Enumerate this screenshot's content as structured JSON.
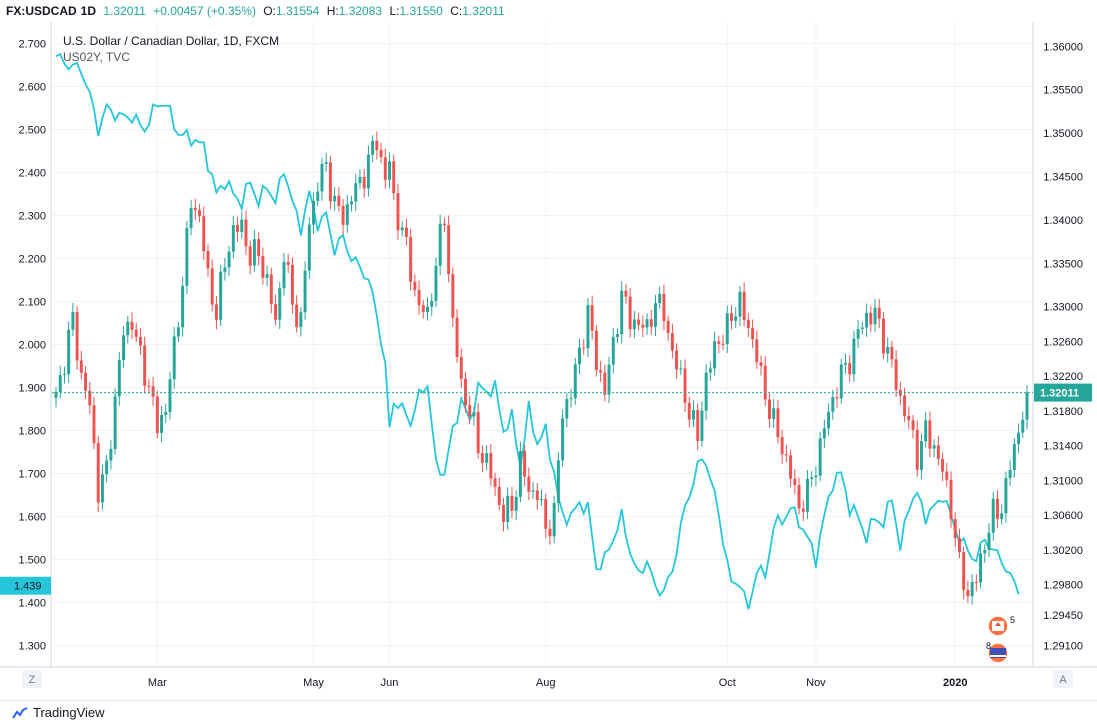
{
  "header": {
    "symbol": "FX:USDCAD",
    "interval": "1D",
    "last": "1.32011",
    "change": "+0.00457 (+0.35%)",
    "o_label": "O:",
    "o_val": "1.31554",
    "h_label": "H:",
    "h_val": "1.32083",
    "l_label": "L:",
    "l_val": "1.31550",
    "c_label": "C:",
    "c_val": "1.32011"
  },
  "legend": {
    "title": "U.S. Dollar / Canadian Dollar, 1D, FXCM",
    "overlay": "US02Y, TVC"
  },
  "colors": {
    "up": "#26a69a",
    "down": "#ef5350",
    "overlay": "#26c6da",
    "price_line": "#26a69a",
    "grid": "#f0f3fa"
  },
  "axis_buttons": {
    "left": "Z",
    "right": "A"
  },
  "branding": "TradingView",
  "badges": {
    "ca_count": "5",
    "us_count": "8"
  },
  "chart_data": {
    "type": "line",
    "title": "U.S. Dollar / Canadian Dollar, 1D, FXCM",
    "x_ticks": [
      "Mar",
      "May",
      "Jun",
      "Aug",
      "Oct",
      "Nov",
      "2020"
    ],
    "x_tick_bars": [
      24,
      61,
      79,
      116,
      159,
      180,
      213
    ],
    "n_bars": 230,
    "left_axis": {
      "range": [
        1.25,
        2.75
      ],
      "ticks": [
        "2.700",
        "2.600",
        "2.500",
        "2.400",
        "2.300",
        "2.200",
        "2.100",
        "2.000",
        "1.900",
        "1.800",
        "1.700",
        "1.600",
        "1.500",
        "1.400",
        "1.300"
      ],
      "current_label": "1.439",
      "current_value": 1.439
    },
    "right_axis": {
      "range": [
        1.2885,
        1.3628
      ],
      "ticks": [
        "1.36000",
        "1.35500",
        "1.35000",
        "1.34500",
        "1.34000",
        "1.33500",
        "1.33000",
        "1.32600",
        "1.32200",
        "1.31800",
        "1.31400",
        "1.31000",
        "1.30600",
        "1.30200",
        "1.29800",
        "1.29450",
        "1.29100"
      ],
      "current_label": "1.32011",
      "current_value": 1.32011
    },
    "series": [
      {
        "name": "US02Y, TVC",
        "kind": "line",
        "axis": "left",
        "anchors": [
          [
            0,
            2.67
          ],
          [
            3,
            2.65
          ],
          [
            6,
            2.64
          ],
          [
            8,
            2.58
          ],
          [
            10,
            2.5
          ],
          [
            12,
            2.55
          ],
          [
            15,
            2.53
          ],
          [
            18,
            2.53
          ],
          [
            21,
            2.5
          ],
          [
            24,
            2.56
          ],
          [
            26,
            2.56
          ],
          [
            29,
            2.49
          ],
          [
            32,
            2.48
          ],
          [
            35,
            2.46
          ],
          [
            38,
            2.35
          ],
          [
            40,
            2.38
          ],
          [
            42,
            2.35
          ],
          [
            44,
            2.33
          ],
          [
            46,
            2.38
          ],
          [
            48,
            2.33
          ],
          [
            50,
            2.37
          ],
          [
            52,
            2.33
          ],
          [
            54,
            2.41
          ],
          [
            56,
            2.33
          ],
          [
            58,
            2.27
          ],
          [
            60,
            2.35
          ],
          [
            62,
            2.28
          ],
          [
            64,
            2.3
          ],
          [
            66,
            2.22
          ],
          [
            68,
            2.25
          ],
          [
            70,
            2.2
          ],
          [
            72,
            2.18
          ],
          [
            74,
            2.15
          ],
          [
            76,
            2.07
          ],
          [
            78,
            1.95
          ],
          [
            79,
            1.8
          ],
          [
            80,
            1.87
          ],
          [
            82,
            1.85
          ],
          [
            84,
            1.82
          ],
          [
            86,
            1.88
          ],
          [
            88,
            1.91
          ],
          [
            90,
            1.72
          ],
          [
            92,
            1.7
          ],
          [
            94,
            1.8
          ],
          [
            96,
            1.87
          ],
          [
            98,
            1.82
          ],
          [
            100,
            1.9
          ],
          [
            102,
            1.89
          ],
          [
            104,
            1.9
          ],
          [
            106,
            1.8
          ],
          [
            108,
            1.83
          ],
          [
            110,
            1.72
          ],
          [
            112,
            1.85
          ],
          [
            114,
            1.77
          ],
          [
            116,
            1.8
          ],
          [
            118,
            1.7
          ],
          [
            119,
            1.64
          ],
          [
            120,
            1.6
          ],
          [
            122,
            1.6
          ],
          [
            124,
            1.63
          ],
          [
            126,
            1.62
          ],
          [
            128,
            1.48
          ],
          [
            130,
            1.5
          ],
          [
            132,
            1.55
          ],
          [
            134,
            1.6
          ],
          [
            136,
            1.52
          ],
          [
            138,
            1.46
          ],
          [
            140,
            1.5
          ],
          [
            142,
            1.43
          ],
          [
            144,
            1.43
          ],
          [
            146,
            1.47
          ],
          [
            148,
            1.58
          ],
          [
            150,
            1.65
          ],
          [
            152,
            1.72
          ],
          [
            154,
            1.73
          ],
          [
            156,
            1.65
          ],
          [
            158,
            1.55
          ],
          [
            160,
            1.44
          ],
          [
            162,
            1.45
          ],
          [
            164,
            1.38
          ],
          [
            166,
            1.48
          ],
          [
            168,
            1.46
          ],
          [
            170,
            1.58
          ],
          [
            172,
            1.59
          ],
          [
            174,
            1.62
          ],
          [
            176,
            1.59
          ],
          [
            178,
            1.55
          ],
          [
            180,
            1.5
          ],
          [
            182,
            1.6
          ],
          [
            184,
            1.68
          ],
          [
            186,
            1.7
          ],
          [
            188,
            1.62
          ],
          [
            190,
            1.6
          ],
          [
            192,
            1.55
          ],
          [
            194,
            1.6
          ],
          [
            196,
            1.58
          ],
          [
            198,
            1.65
          ],
          [
            200,
            1.52
          ],
          [
            202,
            1.63
          ],
          [
            204,
            1.65
          ],
          [
            206,
            1.6
          ],
          [
            208,
            1.62
          ],
          [
            210,
            1.65
          ],
          [
            212,
            1.6
          ],
          [
            214,
            1.55
          ],
          [
            216,
            1.52
          ],
          [
            218,
            1.5
          ],
          [
            220,
            1.55
          ],
          [
            222,
            1.52
          ],
          [
            224,
            1.5
          ],
          [
            226,
            1.46
          ],
          [
            228,
            1.43
          ]
        ]
      },
      {
        "name": "FX:USDCAD",
        "kind": "candlestick",
        "axis": "right",
        "anchors": [
          [
            0,
            1.3195
          ],
          [
            2,
            1.324
          ],
          [
            4,
            1.3285
          ],
          [
            6,
            1.322
          ],
          [
            8,
            1.3185
          ],
          [
            10,
            1.309
          ],
          [
            12,
            1.311
          ],
          [
            14,
            1.3195
          ],
          [
            16,
            1.327
          ],
          [
            18,
            1.3285
          ],
          [
            20,
            1.324
          ],
          [
            22,
            1.321
          ],
          [
            24,
            1.316
          ],
          [
            26,
            1.3185
          ],
          [
            28,
            1.325
          ],
          [
            30,
            1.333
          ],
          [
            32,
            1.342
          ],
          [
            34,
            1.3405
          ],
          [
            36,
            1.333
          ],
          [
            38,
            1.3295
          ],
          [
            40,
            1.335
          ],
          [
            42,
            1.339
          ],
          [
            44,
            1.339
          ],
          [
            46,
            1.336
          ],
          [
            48,
            1.336
          ],
          [
            50,
            1.333
          ],
          [
            52,
            1.328
          ],
          [
            54,
            1.3365
          ],
          [
            56,
            1.33
          ],
          [
            58,
            1.3285
          ],
          [
            60,
            1.3395
          ],
          [
            62,
            1.3445
          ],
          [
            64,
            1.346
          ],
          [
            66,
            1.342
          ],
          [
            68,
            1.34
          ],
          [
            70,
            1.343
          ],
          [
            72,
            1.344
          ],
          [
            74,
            1.347
          ],
          [
            76,
            1.349
          ],
          [
            78,
            1.345
          ],
          [
            79,
            1.3465
          ],
          [
            80,
            1.342
          ],
          [
            82,
            1.339
          ],
          [
            84,
            1.334
          ],
          [
            86,
            1.33
          ],
          [
            88,
            1.329
          ],
          [
            90,
            1.335
          ],
          [
            92,
            1.3405
          ],
          [
            94,
            1.328
          ],
          [
            96,
            1.321
          ],
          [
            98,
            1.318
          ],
          [
            100,
            1.314
          ],
          [
            102,
            1.312
          ],
          [
            104,
            1.309
          ],
          [
            106,
            1.306
          ],
          [
            108,
            1.307
          ],
          [
            110,
            1.312
          ],
          [
            112,
            1.309
          ],
          [
            114,
            1.3085
          ],
          [
            116,
            1.3045
          ],
          [
            118,
            1.306
          ],
          [
            119,
            1.312
          ],
          [
            120,
            1.318
          ],
          [
            122,
            1.32
          ],
          [
            124,
            1.325
          ],
          [
            126,
            1.329
          ],
          [
            128,
            1.324
          ],
          [
            130,
            1.32
          ],
          [
            132,
            1.326
          ],
          [
            134,
            1.331
          ],
          [
            136,
            1.329
          ],
          [
            138,
            1.3275
          ],
          [
            140,
            1.328
          ],
          [
            142,
            1.33
          ],
          [
            144,
            1.33
          ],
          [
            146,
            1.324
          ],
          [
            148,
            1.3225
          ],
          [
            150,
            1.317
          ],
          [
            152,
            1.316
          ],
          [
            154,
            1.321
          ],
          [
            156,
            1.326
          ],
          [
            158,
            1.326
          ],
          [
            160,
            1.3295
          ],
          [
            162,
            1.33
          ],
          [
            164,
            1.328
          ],
          [
            166,
            1.324
          ],
          [
            168,
            1.32
          ],
          [
            170,
            1.3165
          ],
          [
            172,
            1.314
          ],
          [
            174,
            1.3105
          ],
          [
            176,
            1.307
          ],
          [
            178,
            1.3085
          ],
          [
            180,
            1.312
          ],
          [
            182,
            1.316
          ],
          [
            184,
            1.3195
          ],
          [
            186,
            1.322
          ],
          [
            188,
            1.324
          ],
          [
            190,
            1.327
          ],
          [
            192,
            1.329
          ],
          [
            194,
            1.329
          ],
          [
            196,
            1.3265
          ],
          [
            198,
            1.323
          ],
          [
            200,
            1.3195
          ],
          [
            202,
            1.3165
          ],
          [
            204,
            1.313
          ],
          [
            206,
            1.3155
          ],
          [
            208,
            1.314
          ],
          [
            210,
            1.311
          ],
          [
            212,
            1.307
          ],
          [
            214,
            1.3
          ],
          [
            216,
            1.297
          ],
          [
            218,
            1.2985
          ],
          [
            220,
            1.303
          ],
          [
            222,
            1.306
          ],
          [
            224,
            1.307
          ],
          [
            226,
            1.3115
          ],
          [
            228,
            1.316
          ],
          [
            230,
            1.3195
          ]
        ]
      }
    ]
  }
}
